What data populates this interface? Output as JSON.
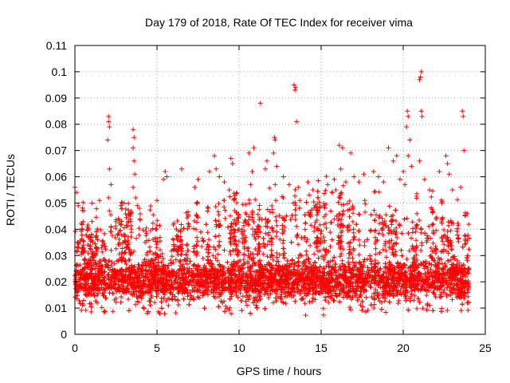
{
  "chart_data": {
    "type": "scatter",
    "title": "Day 179 of 2018, Rate Of TEC Index for receiver vima",
    "xlabel": "GPS time / hours",
    "ylabel": "ROTI / TECUs",
    "xlim": [
      0,
      25
    ],
    "ylim": [
      0,
      0.11
    ],
    "xticks": [
      "0",
      "5",
      "10",
      "15",
      "20",
      "25"
    ],
    "yticks": [
      "0",
      "0.01",
      "0.02",
      "0.03",
      "0.04",
      "0.05",
      "0.06",
      "0.07",
      "0.08",
      "0.09",
      "0.1",
      "0.11"
    ],
    "grid": true,
    "marker": "plus",
    "color": "#ff0000",
    "series": [
      {
        "name": "ROTI",
        "outliers": [
          {
            "x": 0.0,
            "y": 0.056
          },
          {
            "x": 0.1,
            "y": 0.054
          },
          {
            "x": 0.2,
            "y": 0.049
          },
          {
            "x": 1.05,
            "y": 0.05
          },
          {
            "x": 1.5,
            "y": 0.051
          },
          {
            "x": 2.05,
            "y": 0.083
          },
          {
            "x": 2.05,
            "y": 0.081
          },
          {
            "x": 2.1,
            "y": 0.079
          },
          {
            "x": 2.0,
            "y": 0.074
          },
          {
            "x": 2.1,
            "y": 0.063
          },
          {
            "x": 2.2,
            "y": 0.057
          },
          {
            "x": 2.05,
            "y": 0.052
          },
          {
            "x": 2.1,
            "y": 0.047
          },
          {
            "x": 2.8,
            "y": 0.049
          },
          {
            "x": 3.0,
            "y": 0.05
          },
          {
            "x": 3.55,
            "y": 0.078
          },
          {
            "x": 3.6,
            "y": 0.075
          },
          {
            "x": 3.55,
            "y": 0.071
          },
          {
            "x": 3.6,
            "y": 0.066
          },
          {
            "x": 3.65,
            "y": 0.061
          },
          {
            "x": 3.55,
            "y": 0.056
          },
          {
            "x": 3.7,
            "y": 0.052
          },
          {
            "x": 3.8,
            "y": 0.049
          },
          {
            "x": 5.5,
            "y": 0.062
          },
          {
            "x": 5.6,
            "y": 0.06
          },
          {
            "x": 5.4,
            "y": 0.059
          },
          {
            "x": 5.0,
            "y": 0.051
          },
          {
            "x": 6.5,
            "y": 0.063
          },
          {
            "x": 7.5,
            "y": 0.059
          },
          {
            "x": 7.3,
            "y": 0.056
          },
          {
            "x": 8.2,
            "y": 0.062
          },
          {
            "x": 8.6,
            "y": 0.063
          },
          {
            "x": 8.5,
            "y": 0.068
          },
          {
            "x": 8.8,
            "y": 0.06
          },
          {
            "x": 9.1,
            "y": 0.058
          },
          {
            "x": 9.5,
            "y": 0.067
          },
          {
            "x": 9.6,
            "y": 0.065
          },
          {
            "x": 9.4,
            "y": 0.055
          },
          {
            "x": 10.6,
            "y": 0.069
          },
          {
            "x": 10.9,
            "y": 0.071
          },
          {
            "x": 10.8,
            "y": 0.062
          },
          {
            "x": 10.7,
            "y": 0.057
          },
          {
            "x": 11.3,
            "y": 0.088
          },
          {
            "x": 11.7,
            "y": 0.066
          },
          {
            "x": 11.6,
            "y": 0.063
          },
          {
            "x": 12.15,
            "y": 0.075
          },
          {
            "x": 12.2,
            "y": 0.074
          },
          {
            "x": 12.1,
            "y": 0.069
          },
          {
            "x": 12.3,
            "y": 0.064
          },
          {
            "x": 12.2,
            "y": 0.057
          },
          {
            "x": 12.7,
            "y": 0.06
          },
          {
            "x": 13.05,
            "y": 0.057
          },
          {
            "x": 13.3,
            "y": 0.05
          },
          {
            "x": 13.35,
            "y": 0.095
          },
          {
            "x": 13.45,
            "y": 0.094
          },
          {
            "x": 13.4,
            "y": 0.093
          },
          {
            "x": 13.5,
            "y": 0.081
          },
          {
            "x": 13.6,
            "y": 0.056
          },
          {
            "x": 13.7,
            "y": 0.051
          },
          {
            "x": 14.2,
            "y": 0.058
          },
          {
            "x": 14.5,
            "y": 0.055
          },
          {
            "x": 14.8,
            "y": 0.052
          },
          {
            "x": 15.4,
            "y": 0.057
          },
          {
            "x": 15.8,
            "y": 0.059
          },
          {
            "x": 15.9,
            "y": 0.055
          },
          {
            "x": 16.1,
            "y": 0.072
          },
          {
            "x": 16.3,
            "y": 0.071
          },
          {
            "x": 16.2,
            "y": 0.063
          },
          {
            "x": 16.5,
            "y": 0.058
          },
          {
            "x": 16.8,
            "y": 0.069
          },
          {
            "x": 17.0,
            "y": 0.06
          },
          {
            "x": 17.3,
            "y": 0.058
          },
          {
            "x": 17.6,
            "y": 0.061
          },
          {
            "x": 18.2,
            "y": 0.062
          },
          {
            "x": 18.5,
            "y": 0.06
          },
          {
            "x": 18.8,
            "y": 0.058
          },
          {
            "x": 19.1,
            "y": 0.071
          },
          {
            "x": 19.4,
            "y": 0.066
          },
          {
            "x": 19.6,
            "y": 0.068
          },
          {
            "x": 19.8,
            "y": 0.059
          },
          {
            "x": 20.0,
            "y": 0.062
          },
          {
            "x": 20.25,
            "y": 0.085
          },
          {
            "x": 20.3,
            "y": 0.083
          },
          {
            "x": 20.2,
            "y": 0.079
          },
          {
            "x": 20.4,
            "y": 0.074
          },
          {
            "x": 20.3,
            "y": 0.068
          },
          {
            "x": 20.5,
            "y": 0.064
          },
          {
            "x": 20.1,
            "y": 0.057
          },
          {
            "x": 21.1,
            "y": 0.1
          },
          {
            "x": 21.05,
            "y": 0.098
          },
          {
            "x": 21.0,
            "y": 0.097
          },
          {
            "x": 21.1,
            "y": 0.085
          },
          {
            "x": 21.15,
            "y": 0.083
          },
          {
            "x": 21.0,
            "y": 0.066
          },
          {
            "x": 21.3,
            "y": 0.059
          },
          {
            "x": 21.6,
            "y": 0.055
          },
          {
            "x": 22.2,
            "y": 0.062
          },
          {
            "x": 22.6,
            "y": 0.068
          },
          {
            "x": 22.7,
            "y": 0.065
          },
          {
            "x": 22.8,
            "y": 0.061
          },
          {
            "x": 23.0,
            "y": 0.055
          },
          {
            "x": 23.6,
            "y": 0.085
          },
          {
            "x": 23.65,
            "y": 0.083
          },
          {
            "x": 23.7,
            "y": 0.07
          },
          {
            "x": 23.5,
            "y": 0.056
          },
          {
            "x": 23.9,
            "y": 0.046
          }
        ],
        "dense_band": {
          "x_range": [
            0,
            24
          ],
          "base_y_range": [
            0.005,
            0.04
          ],
          "typical_y": 0.02,
          "envelope": [
            {
              "x": 0,
              "low": 0.008,
              "high": 0.04
            },
            {
              "x": 2,
              "low": 0.008,
              "high": 0.043
            },
            {
              "x": 5,
              "low": 0.007,
              "high": 0.04
            },
            {
              "x": 8,
              "low": 0.007,
              "high": 0.043
            },
            {
              "x": 10,
              "low": 0.008,
              "high": 0.045
            },
            {
              "x": 12,
              "low": 0.008,
              "high": 0.046
            },
            {
              "x": 14,
              "low": 0.007,
              "high": 0.05
            },
            {
              "x": 16,
              "low": 0.007,
              "high": 0.05
            },
            {
              "x": 18,
              "low": 0.008,
              "high": 0.048
            },
            {
              "x": 20,
              "low": 0.008,
              "high": 0.046
            },
            {
              "x": 22,
              "low": 0.008,
              "high": 0.044
            },
            {
              "x": 24,
              "low": 0.009,
              "high": 0.042
            }
          ]
        }
      }
    ]
  }
}
